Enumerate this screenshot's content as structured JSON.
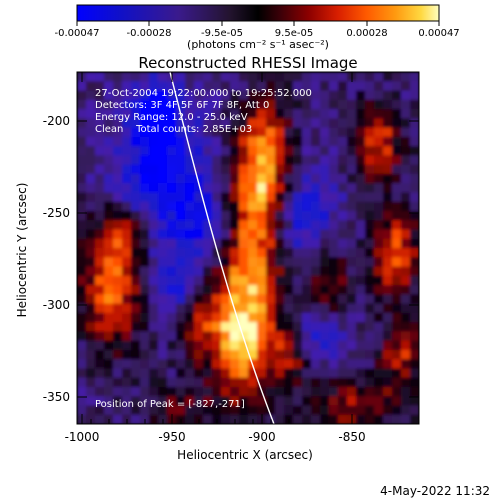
{
  "colorbar": {
    "tick_labels": [
      "-0.00047",
      "-0.00028",
      "-9.5e-05",
      "9.5e-05",
      "0.00028",
      "0.00047"
    ],
    "units_label": "(photons cm⁻² s⁻¹ asec⁻²)"
  },
  "plot": {
    "title": "Reconstructed RHESSI Image",
    "info_lines": [
      "27-Oct-2004 19:22:00.000 to 19:25:52.000",
      "Detectors: 3F 4F 5F 6F 7F 8F, Att 0",
      "Energy Range: 12.0 - 25.0 keV",
      "Clean    Total counts: 2.85E+03"
    ],
    "peak_label": "Position of Peak = [-827,-271]"
  },
  "axes": {
    "xlabel": "Heliocentric X (arcsec)",
    "ylabel": "Heliocentric Y (arcsec)",
    "xticks": [
      "-1000",
      "-950",
      "-900",
      "-850"
    ],
    "yticks": [
      "-200",
      "-250",
      "-300",
      "-350"
    ]
  },
  "timestamp": "4-May-2022 11:32",
  "colors": {
    "background": "#ffffff",
    "plot_bg": "#000000",
    "text": "#000000",
    "overlay_text": "#ffffff",
    "limb_line": "#ffffff"
  }
}
